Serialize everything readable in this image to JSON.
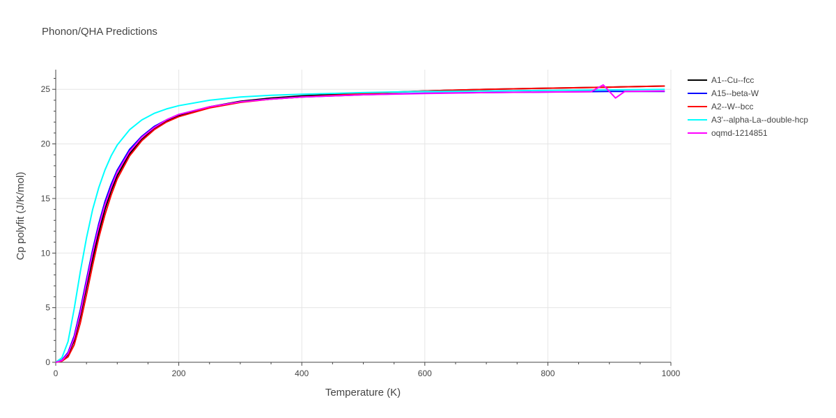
{
  "chart_data": {
    "type": "line",
    "title": "Phonon/QHA Predictions",
    "xlabel": "Temperature (K)",
    "ylabel": "Cp polyfit (J/K/mol)",
    "xlim": [
      0,
      1000
    ],
    "ylim": [
      0,
      26.8
    ],
    "xticks": [
      0,
      200,
      400,
      600,
      800,
      1000
    ],
    "yticks": [
      0,
      5,
      10,
      15,
      20,
      25
    ],
    "grid": true,
    "legend_position": "top-right",
    "series": [
      {
        "name": "A1--Cu--fcc",
        "color": "#000000",
        "x": [
          0,
          10,
          20,
          30,
          40,
          50,
          60,
          70,
          80,
          90,
          100,
          120,
          140,
          160,
          180,
          200,
          250,
          300,
          350,
          400,
          500,
          600,
          700,
          800,
          900,
          990
        ],
        "y": [
          0,
          0.15,
          0.7,
          2.0,
          4.2,
          6.9,
          9.5,
          11.9,
          14.0,
          15.7,
          17.1,
          19.1,
          20.4,
          21.4,
          22.1,
          22.6,
          23.4,
          23.9,
          24.2,
          24.4,
          24.65,
          24.85,
          25.0,
          25.1,
          25.2,
          25.3
        ]
      },
      {
        "name": "A15--beta-W",
        "color": "#0000ff",
        "x": [
          0,
          10,
          20,
          30,
          40,
          50,
          60,
          70,
          80,
          90,
          100,
          120,
          140,
          160,
          180,
          200,
          250,
          300,
          350,
          400,
          500,
          600,
          700,
          800,
          900,
          990
        ],
        "y": [
          0,
          0.2,
          0.9,
          2.4,
          4.8,
          7.6,
          10.3,
          12.7,
          14.7,
          16.3,
          17.6,
          19.5,
          20.7,
          21.6,
          22.2,
          22.7,
          23.4,
          23.85,
          24.1,
          24.3,
          24.5,
          24.65,
          24.7,
          24.75,
          24.8,
          24.8
        ]
      },
      {
        "name": "A2--W--bcc",
        "color": "#ff0000",
        "x": [
          0,
          10,
          20,
          30,
          40,
          50,
          60,
          70,
          80,
          90,
          100,
          120,
          140,
          160,
          180,
          200,
          250,
          300,
          350,
          400,
          500,
          600,
          700,
          800,
          900,
          990
        ],
        "y": [
          0,
          0.1,
          0.5,
          1.6,
          3.6,
          6.2,
          8.9,
          11.4,
          13.5,
          15.3,
          16.8,
          18.9,
          20.3,
          21.3,
          22.0,
          22.5,
          23.3,
          23.8,
          24.1,
          24.3,
          24.6,
          24.85,
          25.0,
          25.1,
          25.2,
          25.3
        ]
      },
      {
        "name": "A3'--alpha-La--double-hcp",
        "color": "#00ffff",
        "x": [
          0,
          10,
          20,
          30,
          40,
          50,
          60,
          70,
          80,
          90,
          100,
          120,
          140,
          160,
          180,
          200,
          250,
          300,
          350,
          400,
          500,
          600,
          700,
          800,
          900,
          990
        ],
        "y": [
          0,
          0.4,
          1.9,
          4.9,
          8.3,
          11.4,
          14.0,
          16.0,
          17.6,
          18.9,
          19.9,
          21.3,
          22.2,
          22.8,
          23.2,
          23.5,
          24.0,
          24.3,
          24.45,
          24.55,
          24.7,
          24.8,
          24.85,
          24.9,
          24.95,
          25.0
        ]
      },
      {
        "name": "oqmd-1214851",
        "color": "#ff00ff",
        "x": [
          0,
          10,
          20,
          30,
          40,
          50,
          60,
          70,
          80,
          90,
          100,
          120,
          140,
          160,
          180,
          200,
          250,
          300,
          350,
          400,
          500,
          600,
          700,
          800,
          870,
          890,
          910,
          925,
          990
        ],
        "y": [
          0,
          0.15,
          0.8,
          2.2,
          4.5,
          7.3,
          10.0,
          12.4,
          14.4,
          16.0,
          17.4,
          19.3,
          20.6,
          21.5,
          22.2,
          22.7,
          23.4,
          23.85,
          24.1,
          24.3,
          24.5,
          24.62,
          24.7,
          24.75,
          24.78,
          25.4,
          24.2,
          24.8,
          24.85
        ]
      }
    ]
  }
}
